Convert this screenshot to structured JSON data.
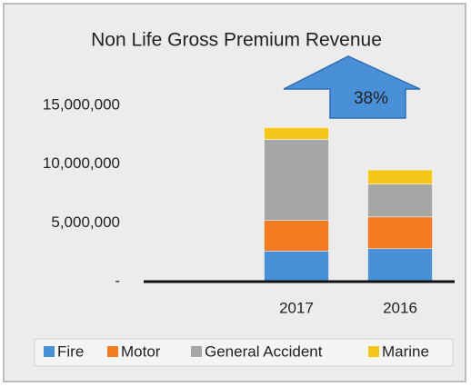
{
  "chart_data": {
    "type": "stacked_bar",
    "title": "Non Life Gross Premium Revenue",
    "annotation": "38%",
    "categories": [
      "2017",
      "2016"
    ],
    "series": [
      {
        "name": "Fire",
        "color": "#4a90d9",
        "values": [
          2600000,
          2800000
        ]
      },
      {
        "name": "Motor",
        "color": "#f47b20",
        "values": [
          2600000,
          2700000
        ]
      },
      {
        "name": "General Accident",
        "color": "#a6a6a6",
        "values": [
          6900000,
          2800000
        ]
      },
      {
        "name": "Marine",
        "color": "#f5c518",
        "values": [
          1000000,
          1200000
        ]
      }
    ],
    "ylim": [
      0,
      16000000
    ],
    "yticks": [
      {
        "value": 0,
        "label": "-"
      },
      {
        "value": 5000000,
        "label": "5,000,000"
      },
      {
        "value": 10000000,
        "label": "10,000,000"
      },
      {
        "value": 15000000,
        "label": "15,000,000"
      }
    ],
    "legend": "bottom"
  }
}
